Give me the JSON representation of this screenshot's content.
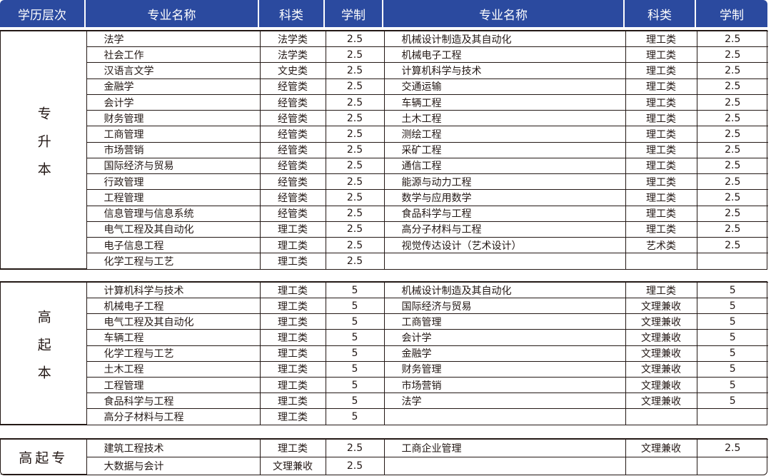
{
  "header": [
    "学历层次",
    "专业名称",
    "科类",
    "学制",
    "专业名称",
    "科类",
    "学制"
  ],
  "accent": "#2b4a9f",
  "sections": [
    {
      "label": "专升本",
      "vertical": true,
      "rows": [
        [
          "法学",
          "法学类",
          "2.5",
          "机械设计制造及其自动化",
          "理工类",
          "2.5"
        ],
        [
          "社会工作",
          "法学类",
          "2.5",
          "机械电子工程",
          "理工类",
          "2.5"
        ],
        [
          "汉语言文学",
          "文史类",
          "2.5",
          "计算机科学与技术",
          "理工类",
          "2.5"
        ],
        [
          "金融学",
          "经管类",
          "2.5",
          "交通运输",
          "理工类",
          "2.5"
        ],
        [
          "会计学",
          "经管类",
          "2.5",
          "车辆工程",
          "理工类",
          "2.5"
        ],
        [
          "财务管理",
          "经管类",
          "2.5",
          "土木工程",
          "理工类",
          "2.5"
        ],
        [
          "工商管理",
          "经管类",
          "2.5",
          "测绘工程",
          "理工类",
          "2.5"
        ],
        [
          "市场营销",
          "经管类",
          "2.5",
          "采矿工程",
          "理工类",
          "2.5"
        ],
        [
          "国际经济与贸易",
          "经管类",
          "2.5",
          "通信工程",
          "理工类",
          "2.5"
        ],
        [
          "行政管理",
          "经管类",
          "2.5",
          "能源与动力工程",
          "理工类",
          "2.5"
        ],
        [
          "工程管理",
          "经管类",
          "2.5",
          "数学与应用数学",
          "理工类",
          "2.5"
        ],
        [
          "信息管理与信息系统",
          "经管类",
          "2.5",
          "食品科学与工程",
          "理工类",
          "2.5"
        ],
        [
          "电气工程及其自动化",
          "理工类",
          "2.5",
          "高分子材料与工程",
          "理工类",
          "2.5"
        ],
        [
          "电子信息工程",
          "理工类",
          "2.5",
          "视觉传达设计（艺术设计）",
          "艺术类",
          "2.5"
        ],
        [
          "化学工程与工艺",
          "理工类",
          "2.5",
          "",
          "",
          ""
        ]
      ]
    },
    {
      "label": "高起本",
      "vertical": true,
      "rows": [
        [
          "计算机科学与技术",
          "理工类",
          "5",
          "机械设计制造及其自动化",
          "理工类",
          "5"
        ],
        [
          "机械电子工程",
          "理工类",
          "5",
          "国际经济与贸易",
          "文理兼收",
          "5"
        ],
        [
          "电气工程及其自动化",
          "理工类",
          "5",
          "工商管理",
          "文理兼收",
          "5"
        ],
        [
          "车辆工程",
          "理工类",
          "5",
          "会计学",
          "文理兼收",
          "5"
        ],
        [
          "化学工程与工艺",
          "理工类",
          "5",
          "金融学",
          "文理兼收",
          "5"
        ],
        [
          "土木工程",
          "理工类",
          "5",
          "财务管理",
          "文理兼收",
          "5"
        ],
        [
          "工程管理",
          "理工类",
          "5",
          "市场营销",
          "文理兼收",
          "5"
        ],
        [
          "食品科学与工程",
          "理工类",
          "5",
          "法学",
          "文理兼收",
          "5"
        ],
        [
          "高分子材料与工程",
          "理工类",
          "5",
          "",
          "",
          ""
        ]
      ]
    },
    {
      "label": "高起专",
      "vertical": false,
      "rows": [
        [
          "建筑工程技术",
          "理工类",
          "2.5",
          "工商企业管理",
          "文理兼收",
          "2.5"
        ],
        [
          "大数据与会计",
          "文理兼收",
          "2.5",
          "",
          "",
          ""
        ]
      ]
    }
  ]
}
